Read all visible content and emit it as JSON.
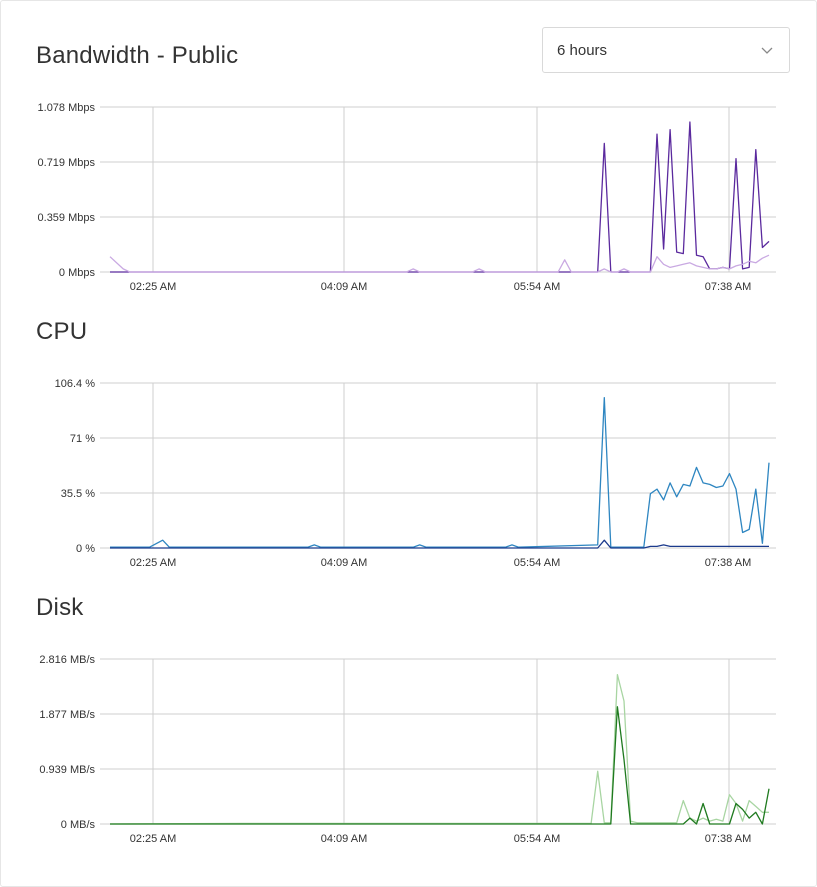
{
  "range_select": {
    "value": "6 hours",
    "icon": "chevron-down-icon"
  },
  "charts": [
    {
      "title": "Bandwidth - Public",
      "y_ticks": [
        "1.078 Mbps",
        "0.719 Mbps",
        "0.359 Mbps",
        "0 Mbps"
      ],
      "x_ticks": [
        "02:25 AM",
        "04:09 AM",
        "05:54 AM",
        "07:38 AM"
      ]
    },
    {
      "title": "CPU",
      "y_ticks": [
        "106.4 %",
        "71 %",
        "35.5 %",
        "0 %"
      ],
      "x_ticks": [
        "02:25 AM",
        "04:09 AM",
        "05:54 AM",
        "07:38 AM"
      ]
    },
    {
      "title": "Disk",
      "y_ticks": [
        "2.816 MB/s",
        "1.877 MB/s",
        "0.939 MB/s",
        "0 MB/s"
      ],
      "x_ticks": [
        "02:25 AM",
        "04:09 AM",
        "05:54 AM",
        "07:38 AM"
      ]
    }
  ],
  "chart_data": [
    {
      "type": "line",
      "ylim": [
        0,
        1.078
      ],
      "x": [
        0,
        2,
        3,
        4,
        5,
        45,
        46,
        47,
        55,
        56,
        57,
        68,
        69,
        70,
        73,
        74,
        75,
        76,
        77,
        78,
        79,
        80,
        81,
        82,
        83,
        84,
        85,
        86,
        87,
        88,
        89,
        90,
        91,
        92,
        93,
        94,
        95,
        96,
        97,
        98,
        99,
        100
      ],
      "series": [
        {
          "color": "#5b2a9e",
          "values": [
            0,
            0,
            0,
            0,
            0,
            0,
            0,
            0,
            0,
            0,
            0,
            0,
            0,
            0,
            0,
            0,
            0.84,
            0,
            0,
            0,
            0,
            0,
            0,
            0,
            0.9,
            0.15,
            0.93,
            0.13,
            0.12,
            0.98,
            0.11,
            0.1,
            0.02,
            0.02,
            0.03,
            0.02,
            0.74,
            0.02,
            0.03,
            0.8,
            0.16,
            0.2
          ]
        },
        {
          "color": "#c9a9e2",
          "values": [
            0.1,
            0.02,
            0,
            0,
            0,
            0,
            0.02,
            0,
            0,
            0.02,
            0,
            0,
            0.08,
            0,
            0,
            0,
            0.02,
            0,
            0,
            0.02,
            0,
            0,
            0,
            0,
            0.1,
            0.05,
            0.03,
            0.04,
            0.05,
            0.06,
            0.04,
            0.03,
            0.02,
            0.02,
            0.03,
            0.02,
            0.04,
            0.05,
            0.07,
            0.06,
            0.09,
            0.11
          ]
        }
      ]
    },
    {
      "type": "line",
      "ylim": [
        0,
        106.4
      ],
      "x": [
        0,
        6,
        8,
        9,
        10,
        30,
        31,
        32,
        46,
        47,
        48,
        60,
        61,
        62,
        74,
        75,
        76,
        77,
        78,
        80,
        81,
        82,
        83,
        84,
        85,
        86,
        87,
        88,
        89,
        90,
        91,
        92,
        93,
        94,
        95,
        96,
        97,
        98,
        99,
        100
      ],
      "series": [
        {
          "color": "#2e86c1",
          "values": [
            0.5,
            0.5,
            5,
            0.5,
            0.5,
            0.5,
            2,
            0.5,
            0.5,
            2,
            0.5,
            0.5,
            2,
            0.5,
            2,
            97,
            0.5,
            0.5,
            0.5,
            0.5,
            0.5,
            35,
            38,
            31,
            42,
            33,
            41,
            40,
            52,
            42,
            41,
            39,
            40,
            48,
            38,
            10,
            12,
            38,
            3,
            55
          ]
        },
        {
          "color": "#1b3a8c",
          "values": [
            0,
            0,
            0,
            0,
            0,
            0,
            0,
            0,
            0,
            0,
            0,
            0,
            0,
            0,
            0,
            5,
            0,
            0,
            0,
            0,
            0,
            1,
            1,
            2,
            1,
            1,
            1,
            1,
            1,
            1,
            1,
            1,
            1,
            1,
            1,
            1,
            1,
            1,
            1,
            1
          ]
        }
      ]
    },
    {
      "type": "line",
      "ylim": [
        0,
        2.816
      ],
      "x": [
        0,
        20,
        40,
        60,
        70,
        73,
        74,
        75,
        76,
        77,
        78,
        79,
        80,
        82,
        84,
        85,
        86,
        87,
        88,
        89,
        90,
        91,
        92,
        93,
        94,
        95,
        96,
        97,
        98,
        99,
        100
      ],
      "series": [
        {
          "color": "#a8d5a2",
          "values": [
            0,
            0.01,
            0.01,
            0.01,
            0.01,
            0.01,
            0.9,
            0.02,
            0.02,
            2.55,
            2.1,
            0.05,
            0.02,
            0.02,
            0.02,
            0.02,
            0.02,
            0.4,
            0.1,
            0.05,
            0.1,
            0.05,
            0.08,
            0.05,
            0.5,
            0.35,
            0.05,
            0.4,
            0.3,
            0.2,
            0.2
          ]
        },
        {
          "color": "#1f7a1f",
          "values": [
            0,
            0,
            0,
            0,
            0,
            0,
            0,
            0,
            0,
            2.0,
            1.1,
            0,
            0,
            0,
            0,
            0,
            0,
            0,
            0.1,
            0,
            0.35,
            0,
            0,
            0,
            0,
            0.35,
            0.25,
            0.1,
            0.2,
            0,
            0.6
          ]
        }
      ]
    }
  ]
}
